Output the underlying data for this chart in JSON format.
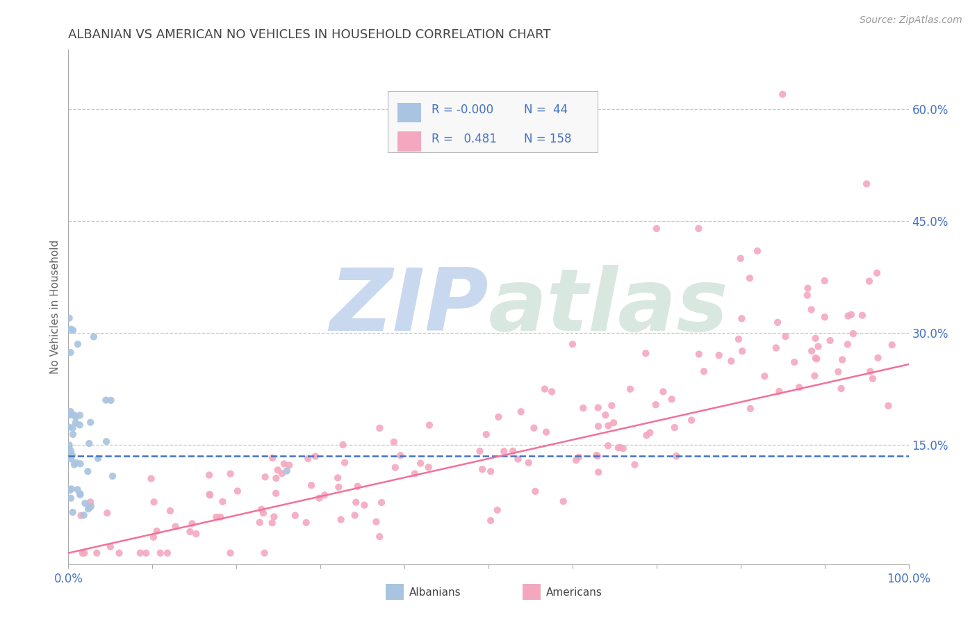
{
  "title": "ALBANIAN VS AMERICAN NO VEHICLES IN HOUSEHOLD CORRELATION CHART",
  "source": "Source: ZipAtlas.com",
  "ylabel": "No Vehicles in Household",
  "xlim": [
    0,
    100
  ],
  "ylim": [
    -0.01,
    0.68
  ],
  "xticklabels": [
    "0.0%",
    "",
    "",
    "",
    "",
    "",
    "",
    "",
    "",
    "",
    "100.0%"
  ],
  "yticks_right": [
    0.15,
    0.3,
    0.45,
    0.6
  ],
  "ytick_right_labels": [
    "15.0%",
    "30.0%",
    "45.0%",
    "60.0%"
  ],
  "albanian_color": "#a8c4e0",
  "american_color": "#f4a8bf",
  "albanian_line_color": "#4472c4",
  "american_line_color": "#f47098",
  "background_color": "#ffffff",
  "grid_color": "#c8c8c8",
  "watermark": "ZIPatlas",
  "watermark_color_zip": "#c8d8ee",
  "watermark_color_atlas": "#d8e8e0",
  "legend_r_albanian": "-0.000",
  "legend_n_albanian": "44",
  "legend_r_american": "0.481",
  "legend_n_american": "158",
  "title_color": "#444444",
  "axis_label_color": "#4472c4",
  "albanian_regression_y0": 0.135,
  "albanian_regression_y1": 0.135,
  "american_regression_y0": 0.005,
  "american_regression_y1": 0.258
}
